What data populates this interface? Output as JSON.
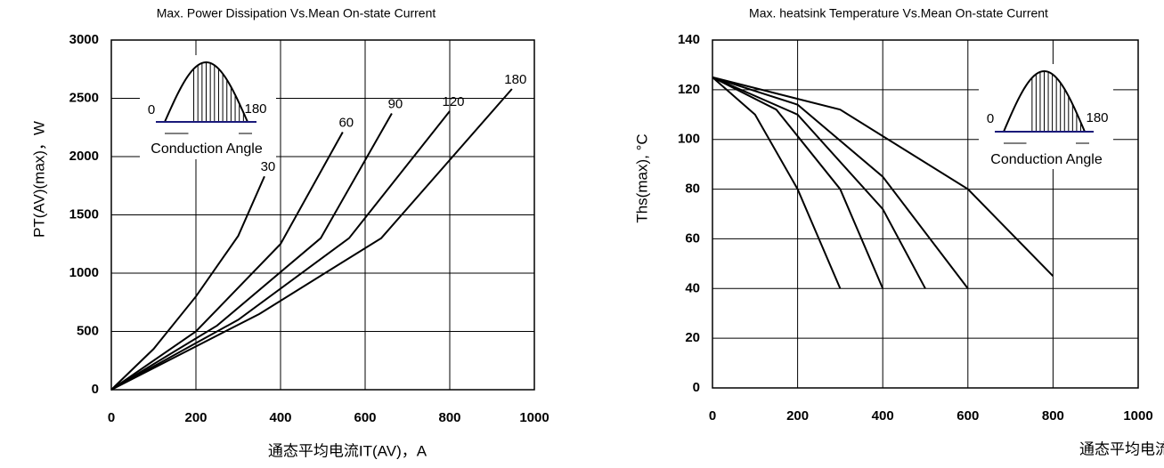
{
  "chart_data": [
    {
      "type": "line",
      "title": "Max. Power Dissipation Vs.Mean On-state Current",
      "y_label": "PT(AV)(max)，W",
      "x_label": "通态平均电流IT(AV)，A",
      "xlim": [
        0,
        1000
      ],
      "xticks": [
        0,
        200,
        400,
        600,
        800,
        1000
      ],
      "ylim": [
        0,
        3000
      ],
      "yticks": [
        0,
        500,
        1000,
        1500,
        2000,
        2500,
        3000
      ],
      "grid": true,
      "inset": {
        "start_label": "0",
        "end_label": "180",
        "caption": "Conduction Angle"
      },
      "series": [
        {
          "name": "30",
          "color": "#000000",
          "x": [
            0,
            100,
            200,
            300,
            362
          ],
          "values": [
            0,
            350,
            800,
            1320,
            1830
          ]
        },
        {
          "name": "60",
          "color": "#000000",
          "x": [
            0,
            200,
            400,
            547
          ],
          "values": [
            0,
            500,
            1250,
            2210
          ]
        },
        {
          "name": "90",
          "color": "#000000",
          "x": [
            0,
            250,
            495,
            663
          ],
          "values": [
            0,
            550,
            1300,
            2370
          ]
        },
        {
          "name": "120",
          "color": "#000000",
          "x": [
            0,
            300,
            562,
            800
          ],
          "values": [
            0,
            600,
            1300,
            2390
          ]
        },
        {
          "name": "180",
          "color": "#000000",
          "x": [
            0,
            350,
            638,
            947
          ],
          "values": [
            0,
            650,
            1300,
            2580
          ]
        }
      ]
    },
    {
      "type": "line",
      "title": "Max. heatsink Temperature Vs.Mean On-state Current",
      "y_label": "Ths(max), °C",
      "x_label": "通态平均电流IT(AV)，A",
      "xlim": [
        0,
        1000
      ],
      "xticks": [
        0,
        200,
        400,
        600,
        800,
        1000
      ],
      "ylim": [
        0,
        140
      ],
      "yticks": [
        0,
        20,
        40,
        60,
        80,
        100,
        120,
        140
      ],
      "grid": true,
      "inset": {
        "start_label": "0",
        "end_label": "180",
        "caption": "Conduction Angle"
      },
      "series": [
        {
          "color": "#000000",
          "x": [
            0,
            100,
            200,
            300
          ],
          "values": [
            125,
            110,
            80,
            40
          ]
        },
        {
          "color": "#000000",
          "x": [
            0,
            150,
            300,
            400
          ],
          "values": [
            125,
            112,
            80,
            40
          ]
        },
        {
          "color": "#000000",
          "x": [
            0,
            200,
            400,
            500
          ],
          "values": [
            125,
            110,
            72,
            40
          ]
        },
        {
          "color": "#000000",
          "x": [
            0,
            200,
            400,
            600
          ],
          "values": [
            125,
            114,
            85,
            40
          ]
        },
        {
          "color": "#000000",
          "x": [
            0,
            300,
            600,
            800
          ],
          "values": [
            125,
            112,
            80,
            45
          ]
        }
      ]
    }
  ]
}
